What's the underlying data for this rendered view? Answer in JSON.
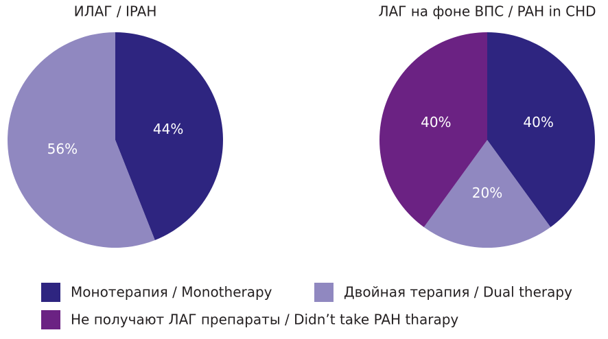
{
  "chart_data": [
    {
      "type": "pie",
      "title": "ИЛАГ / IPAH",
      "values": [
        44,
        56
      ],
      "value_labels": [
        "44%",
        "56%"
      ]
    },
    {
      "type": "pie",
      "title": "ЛАГ на фоне ВПС / PAH in CHD",
      "values": [
        40,
        20,
        40
      ],
      "value_labels": [
        "40%",
        "20%",
        "40%"
      ]
    }
  ],
  "legend": [
    {
      "name": "Монотерапия / Monotherapy",
      "color": "#2e2580"
    },
    {
      "name": "Двойная терапия / Dual therapy",
      "color": "#9088c0"
    },
    {
      "name": "Не получают ЛАГ препараты / Didn’t take PAH tharapy",
      "color": "#6b2283"
    }
  ]
}
